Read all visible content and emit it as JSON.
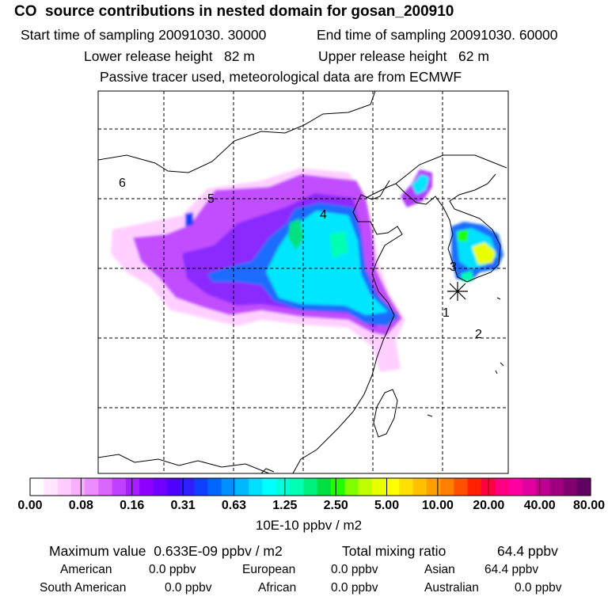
{
  "header": {
    "title": "CO  source contributions in nested domain for gosan_200910",
    "start_label": "Start time of sampling 20091030. 30000",
    "end_label": "End time of sampling 20091030. 60000",
    "lower_release": "Lower release height   82 m",
    "upper_release": "Upper release height   62 m",
    "note": "Passive tracer used, meteorological data are from ECMWF"
  },
  "map": {
    "region_labels": [
      "1",
      "2",
      "3",
      "4",
      "5",
      "6"
    ],
    "receptor_symbol": "star"
  },
  "colorbar": {
    "tick_labels": [
      "0.00",
      "0.08",
      "0.16",
      "0.31",
      "0.63",
      "1.25",
      "2.50",
      "5.00",
      "10.00",
      "20.00",
      "40.00",
      "80.00"
    ],
    "units": "10E-10 ppbv / m2",
    "colors": [
      "#ffffff",
      "#ffe6ff",
      "#ffccff",
      "#f7b0ff",
      "#eb8cff",
      "#d966ff",
      "#c040ff",
      "#a61fff",
      "#8c00ff",
      "#7000ff",
      "#5000ff",
      "#3020ff",
      "#1040ff",
      "#0066ff",
      "#0090ff",
      "#00b8ff",
      "#00e0ff",
      "#00ffff",
      "#00ffd9",
      "#00ffb3",
      "#00f080",
      "#00e040",
      "#20ff00",
      "#80ff00",
      "#c0ff00",
      "#e8ff00",
      "#ffff00",
      "#ffe000",
      "#ffc000",
      "#ffa000",
      "#ff8000",
      "#ff5000",
      "#ff2000",
      "#ff0040",
      "#ff0080",
      "#ff00a0",
      "#e000a0",
      "#c00090",
      "#a00080",
      "#800070",
      "#600060"
    ]
  },
  "summary": {
    "max_label": "Maximum value  0.633E-09 ppbv / m2",
    "total_label": "Total mixing ratio",
    "total_value": "64.4 ppbv",
    "regions": [
      {
        "name": "American",
        "value": "0.0 ppbv"
      },
      {
        "name": "European",
        "value": "0.0 ppbv"
      },
      {
        "name": "Asian",
        "value": "64.4 ppbv"
      },
      {
        "name": "South American",
        "value": "0.0 ppbv"
      },
      {
        "name": "African",
        "value": "0.0 ppbv"
      },
      {
        "name": "Australian",
        "value": "0.0 ppbv"
      }
    ]
  }
}
